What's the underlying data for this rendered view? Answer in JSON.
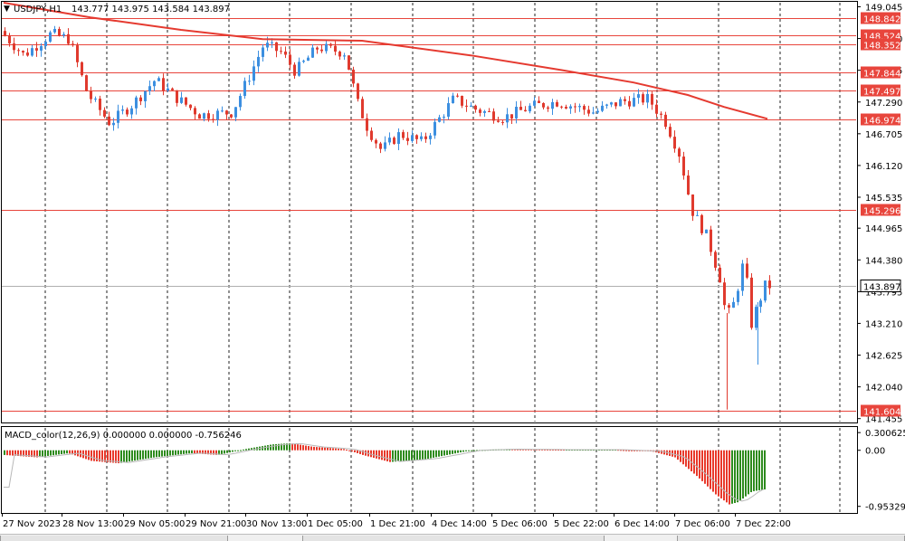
{
  "header": {
    "symbol_label": "USDJPY,H1",
    "ohlc_label": "143.777 143.975 143.584 143.897",
    "menu_glyph": "▼"
  },
  "price_axis": {
    "ticks": [
      "149.045",
      "148.460",
      "147.875",
      "147.290",
      "146.705",
      "146.120",
      "145.535",
      "144.965",
      "144.380",
      "143.795",
      "143.210",
      "142.625",
      "142.040",
      "141.455"
    ],
    "tick_values": [
      149.045,
      148.46,
      147.875,
      147.29,
      146.705,
      146.12,
      145.535,
      144.965,
      144.38,
      143.795,
      143.21,
      142.625,
      142.04,
      141.455
    ],
    "range": [
      141.4,
      149.12
    ]
  },
  "levels": [
    {
      "label": "148.842",
      "value": 148.842
    },
    {
      "label": "148.524",
      "value": 148.524
    },
    {
      "label": "148.352",
      "value": 148.352
    },
    {
      "label": "147.844",
      "value": 147.844
    },
    {
      "label": "147.497",
      "value": 147.497
    },
    {
      "label": "146.974",
      "value": 146.974
    },
    {
      "label": "145.296",
      "value": 145.296
    },
    {
      "label": "141.604",
      "value": 141.604
    }
  ],
  "current_price": {
    "label": "143.897",
    "value": 143.897
  },
  "macd": {
    "label": "MACD_color(12,26,9) 0.000000 0.000000 -0.756246",
    "ticks": [
      "0.300625",
      "0.00",
      "-0.953293"
    ],
    "tick_values": [
      0.300625,
      0.0,
      -0.953293
    ],
    "range": [
      -1.05,
      0.38
    ]
  },
  "time_axis": {
    "labels": [
      "27 Nov 2023",
      "28 Nov 13:00",
      "29 Nov 05:00",
      "29 Nov 21:00",
      "30 Nov 13:00",
      "1 Dec 05:00",
      "1 Dec 21:00",
      "4 Dec 14:00",
      "5 Dec 06:00",
      "5 Dec 22:00",
      "6 Dec 14:00",
      "7 Dec 06:00",
      "7 Dec 22:00"
    ]
  },
  "colors": {
    "bull": "#3c8fe0",
    "bear": "#e03a2e",
    "level": "#e8453c",
    "ma": "#e53a30",
    "hist_up": "#2e8b1e",
    "hist_down": "#e8392b",
    "grid": "#222222",
    "signal": "#b8b8b8"
  }
}
